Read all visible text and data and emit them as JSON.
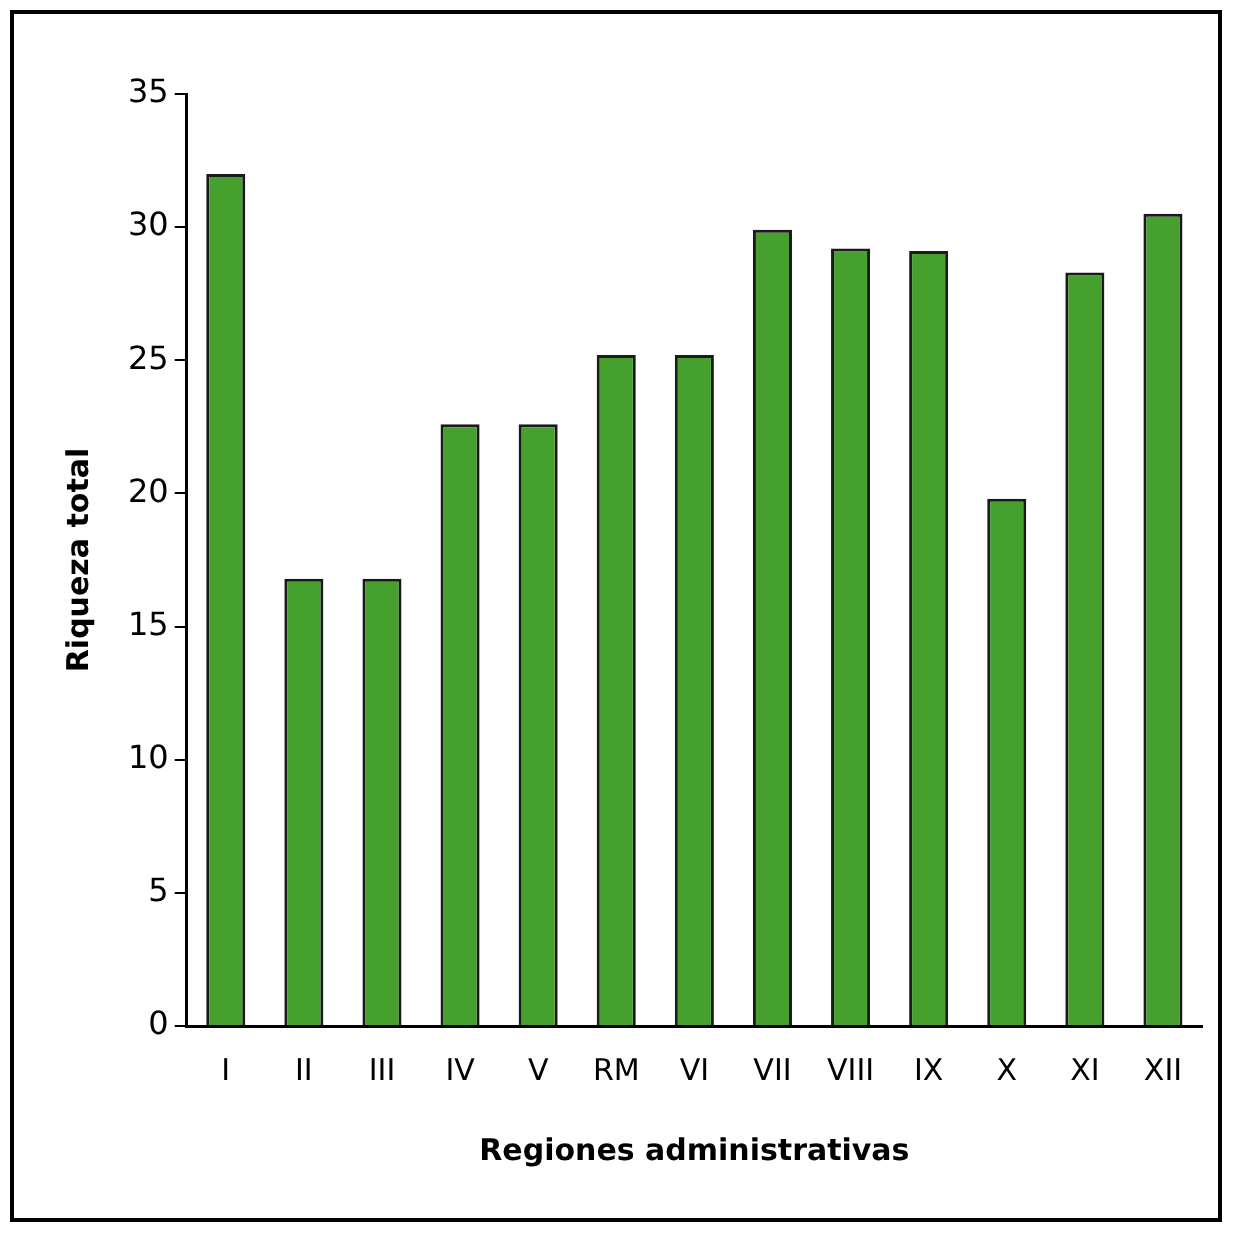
{
  "chart_data": {
    "type": "bar",
    "xlabel": "Regiones administrativas",
    "ylabel": "Riqueza total",
    "categories": [
      "I",
      "II",
      "III",
      "IV",
      "V",
      "RM",
      "VI",
      "VII",
      "VIII",
      "IX",
      "X",
      "XI",
      "XII"
    ],
    "values": [
      32,
      16.8,
      16.8,
      22.6,
      22.6,
      25.2,
      25.2,
      29.9,
      29.2,
      29.1,
      19.8,
      28.3,
      30.5
    ],
    "color": "#46a02e",
    "ylim": [
      0,
      35
    ],
    "yticks": [
      0,
      5,
      10,
      15,
      20,
      25,
      30,
      35
    ],
    "grid": false,
    "legend": false
  }
}
